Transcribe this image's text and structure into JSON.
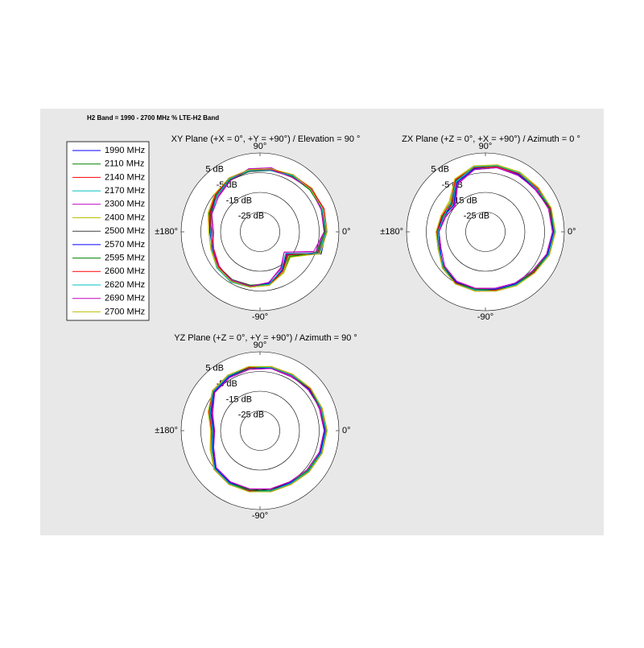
{
  "title": "H2 Band = 1990 - 2700 MHz % LTE-H2 Band",
  "legend": [
    {
      "name": "1990 MHz",
      "color": "#0000ff"
    },
    {
      "name": "2110 MHz",
      "color": "#008000"
    },
    {
      "name": "2140 MHz",
      "color": "#ff0000"
    },
    {
      "name": "2170 MHz",
      "color": "#00bfbf"
    },
    {
      "name": "2300 MHz",
      "color": "#bf00bf"
    },
    {
      "name": "2400 MHz",
      "color": "#bfbf00"
    },
    {
      "name": "2500 MHz",
      "color": "#404040"
    },
    {
      "name": "2570 MHz",
      "color": "#0000ff"
    },
    {
      "name": "2595 MHz",
      "color": "#008000"
    },
    {
      "name": "2600 MHz",
      "color": "#ff0000"
    },
    {
      "name": "2620 MHz",
      "color": "#00bfbf"
    },
    {
      "name": "2690 MHz",
      "color": "#bf00bf"
    },
    {
      "name": "2700 MHz",
      "color": "#bfbf00"
    }
  ],
  "chart_data": [
    {
      "type": "polar",
      "title": "XY Plane (+X = 0°, +Y = +90°) / Elevation = 90 °",
      "rlim": [
        -35,
        5
      ],
      "rticks": [
        {
          "value": 5,
          "label": "5 dB"
        },
        {
          "value": -5,
          "label": "-5 dB"
        },
        {
          "value": -15,
          "label": "-15 dB"
        },
        {
          "value": -25,
          "label": "-25 dB"
        }
      ],
      "angle_ticks": [
        {
          "value": 90,
          "label": "90°"
        },
        {
          "value": 180,
          "label": "±180°"
        },
        {
          "value": 0,
          "label": "0°"
        },
        {
          "value": -90,
          "label": "-90°"
        }
      ],
      "theta": [
        0,
        20,
        40,
        60,
        80,
        100,
        120,
        140,
        160,
        180,
        200,
        220,
        240,
        260,
        280,
        300,
        320,
        340
      ],
      "series": [
        {
          "values": [
            -1.5,
            -1,
            -1.5,
            -2,
            -3,
            -3.5,
            -4,
            -6,
            -8,
            -10,
            -9,
            -7,
            -6,
            -7,
            -8,
            -12,
            -17,
            -3
          ]
        },
        {
          "values": [
            -2,
            -1.5,
            -1,
            -2.5,
            -2.5,
            -3,
            -4.5,
            -6.5,
            -9,
            -10.5,
            -8.5,
            -6.5,
            -6,
            -7.5,
            -8.5,
            -11,
            -15,
            -4
          ]
        },
        {
          "values": [
            -1,
            -0.5,
            -1,
            -2,
            -3.5,
            -3,
            -3.5,
            -5.5,
            -7.5,
            -9.5,
            -9.5,
            -7.5,
            -5.5,
            -6.5,
            -7.5,
            -13,
            -18,
            -2.5
          ]
        },
        {
          "values": [
            -1.5,
            -1,
            -2,
            -1.5,
            -3,
            -4,
            -4,
            -6,
            -8.5,
            -10,
            -9,
            -7,
            -6.5,
            -7,
            -8,
            -12.5,
            -16,
            -3.5
          ]
        },
        {
          "values": [
            -2.5,
            -2,
            -1.5,
            -3,
            -2,
            -2.5,
            -5,
            -7,
            -8,
            -11,
            -10,
            -8,
            -6,
            -6.5,
            -9,
            -14,
            -19,
            -5
          ]
        },
        {
          "values": [
            -1,
            -1,
            -0.5,
            -2,
            -3,
            -3.5,
            -4,
            -5,
            -7,
            -9,
            -8.5,
            -6.5,
            -5.5,
            -6.5,
            -7.5,
            -11.5,
            -16,
            -3
          ]
        },
        {
          "values": [
            -2,
            -1.5,
            -1.5,
            -2.5,
            -3.5,
            -4,
            -4.5,
            -6.5,
            -8.5,
            -10,
            -9,
            -7.5,
            -7,
            -7.5,
            -8,
            -12,
            -16.5,
            -4
          ]
        },
        {
          "values": [
            -1.5,
            -1,
            -1,
            -2,
            -3,
            -3,
            -4,
            -6,
            -8,
            -9.5,
            -9.5,
            -7,
            -6,
            -7,
            -8.5,
            -12.5,
            -17.5,
            -2
          ]
        },
        {
          "values": [
            -2,
            -1.5,
            -2,
            -2.5,
            -2.5,
            -3.5,
            -4.5,
            -6,
            -7.5,
            -10.5,
            -9,
            -7,
            -6,
            -7.5,
            -8,
            -11,
            -15.5,
            -4.5
          ]
        },
        {
          "values": [
            -1,
            -0.5,
            -1,
            -1.5,
            -3,
            -3,
            -3.5,
            -5.5,
            -8,
            -10,
            -10,
            -7.5,
            -6.5,
            -7,
            -7.5,
            -12,
            -17,
            -3.5
          ]
        },
        {
          "values": [
            -1.5,
            -1.5,
            -1.5,
            -2,
            -3.5,
            -3.5,
            -4,
            -6.5,
            -9,
            -10,
            -9,
            -6.5,
            -5.5,
            -6.5,
            -8,
            -13,
            -18,
            -3
          ]
        },
        {
          "values": [
            -2.5,
            -2,
            -1,
            -3,
            -3,
            -2.5,
            -5,
            -7.5,
            -9,
            -11.5,
            -9.5,
            -7,
            -6.5,
            -7,
            -9,
            -13.5,
            -19,
            -6
          ]
        },
        {
          "values": [
            -1,
            -1,
            -1.5,
            -1.5,
            -2.5,
            -3,
            -3.5,
            -5,
            -7,
            -9,
            -8.5,
            -7,
            -6,
            -6.5,
            -7.5,
            -11,
            -15,
            -2.5
          ]
        }
      ]
    },
    {
      "type": "polar",
      "title": "ZX Plane (+Z = 0°, +X = +90°) / Azimuth = 0 °",
      "rlim": [
        -35,
        5
      ],
      "rticks": [
        {
          "value": 5,
          "label": "5 dB"
        },
        {
          "value": -5,
          "label": "-5 dB"
        },
        {
          "value": -15,
          "label": "-15 dB"
        },
        {
          "value": -25,
          "label": "-25 dB"
        }
      ],
      "angle_ticks": [
        {
          "value": 90,
          "label": "90°"
        },
        {
          "value": 180,
          "label": "±180°"
        },
        {
          "value": 0,
          "label": "0°"
        },
        {
          "value": -90,
          "label": "-90°"
        }
      ],
      "theta": [
        0,
        20,
        40,
        60,
        80,
        100,
        120,
        140,
        160,
        180,
        200,
        220,
        240,
        260,
        280,
        300,
        320,
        340
      ],
      "series": [
        {
          "values": [
            0,
            0,
            -1,
            -1,
            -1,
            -2,
            -5,
            -13,
            -12,
            -10.5,
            -10,
            -7,
            -5,
            -5,
            -5,
            -4,
            -3,
            -1
          ]
        },
        {
          "values": [
            -0.5,
            -0.5,
            -1.5,
            -1,
            -1.5,
            -2.5,
            -6,
            -14,
            -12.5,
            -11,
            -9.5,
            -7.5,
            -5.5,
            -5.5,
            -5,
            -4.5,
            -3.5,
            -1.5
          ]
        },
        {
          "values": [
            0.5,
            0,
            -0.5,
            -0.5,
            -1,
            -1.5,
            -4.5,
            -12,
            -11.5,
            -10,
            -10.5,
            -6.5,
            -4.5,
            -4.5,
            -4.5,
            -3.5,
            -2.5,
            -0.5
          ]
        },
        {
          "values": [
            0,
            -0.5,
            -1,
            -1.5,
            -1,
            -2,
            -5.5,
            -13.5,
            -13,
            -11,
            -10,
            -7,
            -5,
            -5.5,
            -5.5,
            -4,
            -3,
            -1
          ]
        },
        {
          "values": [
            -1,
            -0.5,
            -2,
            -1.5,
            -2,
            -3,
            -7,
            -15,
            -13,
            -11.5,
            -11,
            -8,
            -6,
            -5.5,
            -6,
            -5,
            -4,
            -2
          ]
        },
        {
          "values": [
            0.5,
            0.5,
            0,
            -0.5,
            -0.5,
            -1.5,
            -4,
            -11,
            -11,
            -10,
            -9.5,
            -6.5,
            -4.5,
            -5,
            -4.5,
            -3.5,
            -2.5,
            -0.5
          ]
        },
        {
          "values": [
            0,
            0,
            -1,
            -1,
            -1.5,
            -2,
            -5,
            -13,
            -12.5,
            -10.5,
            -10,
            -7.5,
            -5,
            -5,
            -5,
            -4,
            -3,
            -1
          ]
        },
        {
          "values": [
            -0.5,
            0,
            -1.5,
            -1.5,
            -1,
            -2.5,
            -6,
            -14,
            -12,
            -11,
            -10.5,
            -7,
            -5.5,
            -5,
            -5.5,
            -4.5,
            -3,
            -1.5
          ]
        },
        {
          "values": [
            0,
            -0.5,
            -1,
            -1,
            -1,
            -2,
            -5,
            -12.5,
            -12,
            -10,
            -9.5,
            -7,
            -5,
            -5.5,
            -5,
            -4,
            -3.5,
            -1
          ]
        },
        {
          "values": [
            0.5,
            0,
            -0.5,
            -1,
            -1.5,
            -2,
            -4.5,
            -13,
            -11.5,
            -10.5,
            -10,
            -6.5,
            -5,
            -4.5,
            -5,
            -3.5,
            -3,
            -0.5
          ]
        },
        {
          "values": [
            0,
            0.5,
            -1,
            -0.5,
            -1,
            -1.5,
            -5.5,
            -12,
            -12.5,
            -11,
            -10,
            -7,
            -4.5,
            -5,
            -4.5,
            -4,
            -2.5,
            -1
          ]
        },
        {
          "values": [
            -1,
            -1,
            -1.5,
            -2,
            -2,
            -3,
            -6.5,
            -14.5,
            -13.5,
            -11.5,
            -11,
            -8,
            -6,
            -6,
            -6,
            -5,
            -4,
            -2
          ]
        },
        {
          "values": [
            0.5,
            0.5,
            0,
            0,
            -0.5,
            -1,
            -4,
            -11.5,
            -11,
            -10,
            -9.5,
            -6.5,
            -4.5,
            -4.5,
            -4.5,
            -3.5,
            -2.5,
            -0.5
          ]
        }
      ]
    },
    {
      "type": "polar",
      "title": "YZ Plane (+Z = 0°, +Y = +90°) / Azimuth = 90 °",
      "rlim": [
        -35,
        5
      ],
      "rticks": [
        {
          "value": 5,
          "label": "5 dB"
        },
        {
          "value": -5,
          "label": "-5 dB"
        },
        {
          "value": -15,
          "label": "-15 dB"
        },
        {
          "value": -25,
          "label": "-25 dB"
        }
      ],
      "angle_ticks": [
        {
          "value": 90,
          "label": "90°"
        },
        {
          "value": 180,
          "label": "±180°"
        },
        {
          "value": 0,
          "label": "0°"
        },
        {
          "value": -90,
          "label": "-90°"
        }
      ],
      "theta": [
        0,
        20,
        40,
        60,
        80,
        100,
        120,
        140,
        160,
        180,
        200,
        220,
        240,
        260,
        280,
        300,
        320,
        340
      ],
      "series": [
        {
          "values": [
            -1.5,
            -2,
            -2,
            -2.5,
            -2.5,
            -2.5,
            -3,
            -4,
            -8,
            -11,
            -9,
            -5,
            -4,
            -4,
            -4,
            -4,
            -3,
            -2
          ]
        },
        {
          "values": [
            -2,
            -2.5,
            -2.5,
            -3,
            -2,
            -3,
            -3.5,
            -4.5,
            -9,
            -11.5,
            -9.5,
            -5.5,
            -4.5,
            -4.5,
            -4,
            -4.5,
            -3.5,
            -2.5
          ]
        },
        {
          "values": [
            -1,
            -1.5,
            -1.5,
            -2,
            -2.5,
            -2,
            -2.5,
            -3.5,
            -7.5,
            -10.5,
            -8.5,
            -4.5,
            -3.5,
            -3.5,
            -3.5,
            -3.5,
            -2.5,
            -1.5
          ]
        },
        {
          "values": [
            -1.5,
            -2,
            -2.5,
            -2.5,
            -3,
            -2.5,
            -3,
            -4,
            -8.5,
            -11,
            -9,
            -5,
            -4,
            -4.5,
            -4,
            -4,
            -3,
            -2
          ]
        },
        {
          "values": [
            -2.5,
            -3,
            -2,
            -3.5,
            -3,
            -3.5,
            -4,
            -5,
            -9,
            -12,
            -10,
            -6,
            -5,
            -5,
            -5,
            -5,
            -4,
            -3
          ]
        },
        {
          "values": [
            -1,
            -1.5,
            -1.5,
            -2,
            -2,
            -2,
            -2.5,
            -3.5,
            -7,
            -10,
            -8,
            -4.5,
            -3.5,
            -3.5,
            -3.5,
            -3.5,
            -2.5,
            -1.5
          ]
        },
        {
          "values": [
            -1.5,
            -2,
            -2,
            -2.5,
            -2.5,
            -3,
            -3,
            -4,
            -8,
            -11,
            -9,
            -5,
            -4,
            -4,
            -4.5,
            -4,
            -3,
            -2
          ]
        },
        {
          "values": [
            -2,
            -2,
            -2.5,
            -2.5,
            -3,
            -2.5,
            -3.5,
            -4.5,
            -8.5,
            -11.5,
            -9.5,
            -5.5,
            -4.5,
            -4,
            -4,
            -4.5,
            -3,
            -2.5
          ]
        },
        {
          "values": [
            -1.5,
            -2.5,
            -2,
            -3,
            -2.5,
            -2.5,
            -3,
            -4,
            -8,
            -10.5,
            -9,
            -5,
            -4,
            -4.5,
            -4,
            -4,
            -3.5,
            -2
          ]
        },
        {
          "values": [
            -1,
            -1.5,
            -2,
            -2,
            -2,
            -2.5,
            -2.5,
            -3.5,
            -7.5,
            -10.5,
            -8.5,
            -4.5,
            -3.5,
            -4,
            -3.5,
            -3.5,
            -2.5,
            -1.5
          ]
        },
        {
          "values": [
            -1.5,
            -2,
            -1.5,
            -2.5,
            -2.5,
            -2,
            -3,
            -4,
            -8,
            -11,
            -9,
            -5,
            -4,
            -3.5,
            -4,
            -4,
            -3,
            -2
          ]
        },
        {
          "values": [
            -2.5,
            -2.5,
            -3,
            -3,
            -3,
            -3.5,
            -4,
            -5,
            -9.5,
            -12,
            -10,
            -6,
            -5,
            -5,
            -5,
            -5,
            -4,
            -3
          ]
        },
        {
          "values": [
            -1,
            -1.5,
            -1.5,
            -2,
            -2,
            -2,
            -2.5,
            -3.5,
            -7,
            -10,
            -8.5,
            -4.5,
            -3.5,
            -3.5,
            -3.5,
            -3.5,
            -2.5,
            -1.5
          ]
        }
      ]
    }
  ]
}
